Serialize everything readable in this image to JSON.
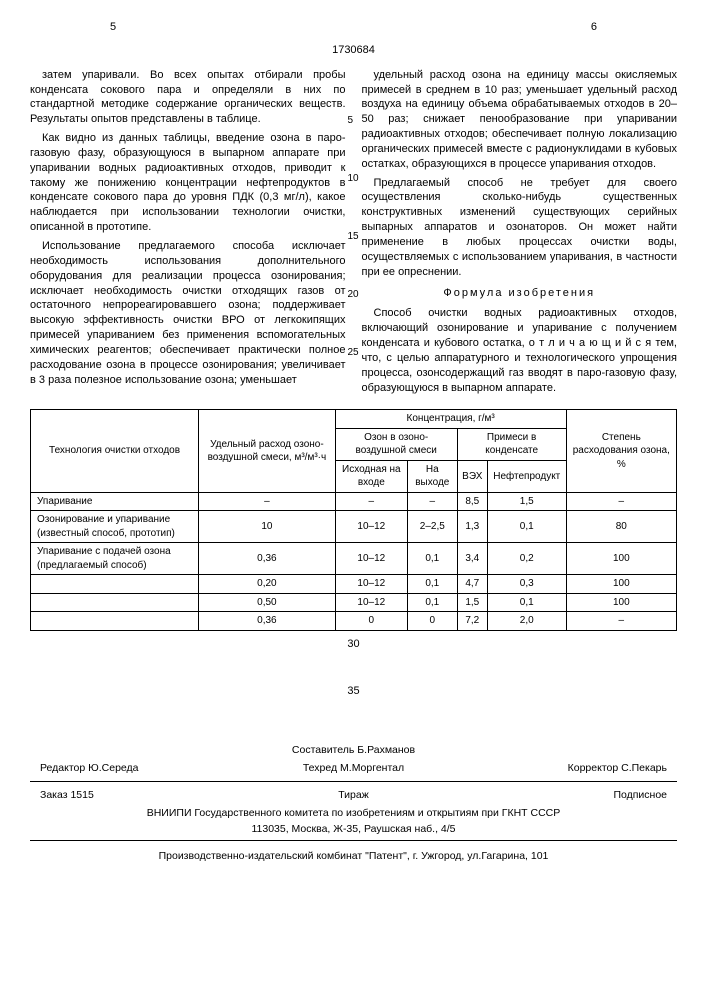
{
  "page_left_num": "5",
  "page_right_num": "6",
  "doc_number": "1730684",
  "left_col": {
    "p1": "затем упаривали. Во всех опытах отбирали пробы конденсата сокового пара и определяли в них по стандартной методике содержание органических веществ. Результаты опытов представлены в таблице.",
    "p2": "Как видно из данных таблицы, введение озона в паро-газовую фазу, образующуюся в выпарном аппарате при упаривании водных радиоактивных отходов, приводит к такому же понижению концентрации нефтепродуктов в конденсате сокового пара до уровня ПДК (0,3 мг/л), какое наблюдается при использовании технологии очистки, описанной в прототипе.",
    "p3": "Использование предлагаемого способа исключает необходимость использования дополнительного оборудования для реализации процесса озонирования; исключает необходимость очистки отходящих газов от остаточного непрореагировавшего озона; поддерживает высокую эффективность очистки ВРО от легкокипящих примесей упариванием без применения вспомогательных химических реагентов; обеспечивает практически полное расходование озона в процессе озонирования; увеличивает в 3 раза полезное использование озона; уменьшает"
  },
  "right_col": {
    "p1": "удельный расход озона на единицу массы окисляемых примесей в среднем в 10 раз; уменьшает удельный расход воздуха на единицу объема обрабатываемых отходов в 20–50 раз; снижает пенообразование при упаривании радиоактивных отходов; обеспечивает полную локализацию органических примесей вместе с радионуклидами в кубовых остатках, образующихся в процессе упаривания отходов.",
    "p2": "Предлагаемый способ не требует для своего осуществления сколько-нибудь существенных конструктивных изменений существующих серийных выпарных аппаратов и озонаторов. Он может найти применение в любых процессах очистки воды, осуществляемых с использованием упаривания, в частности при ее опреснении.",
    "formula_title": "Формула изобретения",
    "p3": "Способ очистки водных радиоактивных отходов, включающий озонирование и упаривание с получением конденсата и кубового остатка, о т л и ч а ю щ и й с я  тем, что, с целью аппаратурного и технологического упрощения процесса, озонсодержащий газ вводят в паро-газовую фазу, образующуюся в выпарном аппарате."
  },
  "line_markers": {
    "m5": "5",
    "m10": "10",
    "m15": "15",
    "m20": "20",
    "m25": "25"
  },
  "table": {
    "h_tech": "Технология очистки отходов",
    "h_rate": "Удельный расход озоно-воздушной смеси, м³/м³·ч",
    "h_conc": "Концентрация, г/м³",
    "h_degree": "Степень расходования озона, %",
    "h_ozone": "Озон в озоно-воздушной смеси",
    "h_impur": "Примеси в конденсате",
    "h_in": "Исходная на входе",
    "h_out": "На выходе",
    "h_vex": "ВЭХ",
    "h_oil": "Нефтепродукт",
    "rows": [
      {
        "label": "Упаривание",
        "rate": "–",
        "in": "–",
        "out": "–",
        "vex": "8,5",
        "oil": "1,5",
        "deg": "–"
      },
      {
        "label": "Озонирование и упаривание (известный способ, прототип)",
        "rate": "10",
        "in": "10–12",
        "out": "2–2,5",
        "vex": "1,3",
        "oil": "0,1",
        "deg": "80"
      },
      {
        "label": "Упаривание с подачей озона (предлагаемый способ)",
        "rate": "0,36",
        "in": "10–12",
        "out": "0,1",
        "vex": "3,4",
        "oil": "0,2",
        "deg": "100"
      },
      {
        "label": "",
        "rate": "0,20",
        "in": "10–12",
        "out": "0,1",
        "vex": "4,7",
        "oil": "0,3",
        "deg": "100"
      },
      {
        "label": "",
        "rate": "0,50",
        "in": "10–12",
        "out": "0,1",
        "vex": "1,5",
        "oil": "0,1",
        "deg": "100"
      },
      {
        "label": "",
        "rate": "0,36",
        "in": "0",
        "out": "0",
        "vex": "7,2",
        "oil": "2,0",
        "deg": "–"
      }
    ]
  },
  "mid30": "30",
  "mid35": "35",
  "credits": {
    "editor_label": "Редактор",
    "editor": "Ю.Середа",
    "compiler_label": "Составитель",
    "compiler": "Б.Рахманов",
    "techred_label": "Техред",
    "techred": "М.Моргентал",
    "corrector_label": "Корректор",
    "corrector": "С.Пекарь",
    "order": "Заказ 1515",
    "tiraz": "Тираж",
    "subscr": "Подписное",
    "org": "ВНИИПИ Государственного комитета по изобретениям и открытиям при ГКНТ СССР",
    "addr": "113035, Москва, Ж-35, Раушская наб., 4/5",
    "pub": "Производственно-издательский комбинат \"Патент\", г. Ужгород, ул.Гагарина, 101"
  }
}
